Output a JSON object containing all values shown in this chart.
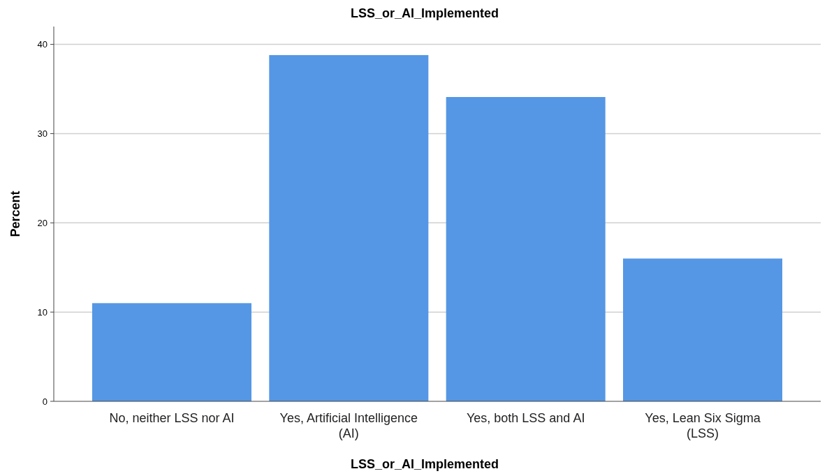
{
  "chart_data": {
    "type": "bar",
    "title": "LSS_or_AI_Implemented",
    "xlabel": "LSS_or_AI_Implemented",
    "ylabel": "Percent",
    "categories": [
      "No, neither LSS nor AI",
      "Yes, Artificial Intelligence (AI)",
      "Yes, both LSS and AI",
      "Yes, Lean Six Sigma (LSS)"
    ],
    "values": [
      11.0,
      38.8,
      34.1,
      16.0
    ],
    "color": "#5597e4",
    "ylim": [
      0,
      42
    ],
    "yticks": [
      0,
      10,
      20,
      30,
      40
    ],
    "grid": "y"
  }
}
